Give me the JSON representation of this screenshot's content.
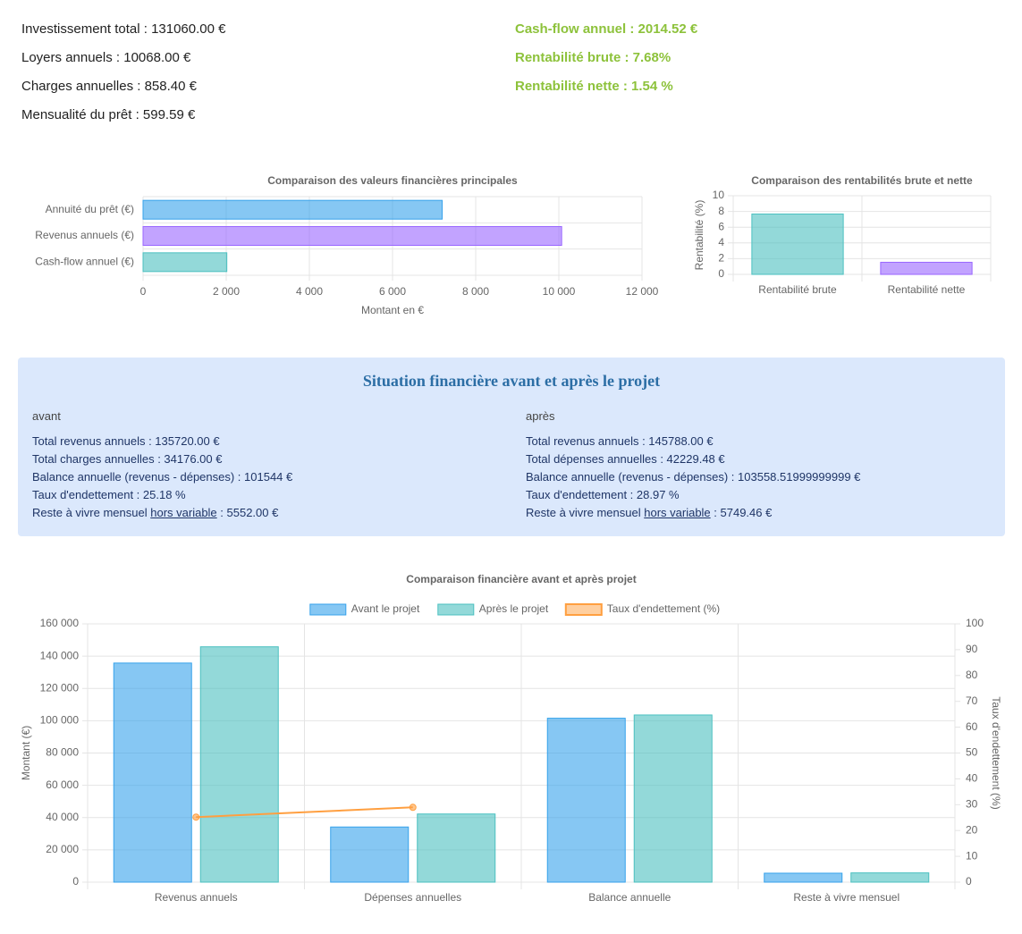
{
  "summary": {
    "left": [
      "Investissement total : 131060.00 €",
      "Loyers annuels : 10068.00 €",
      "Charges annuelles : 858.40 €",
      "Mensualité du prêt : 599.59 €"
    ],
    "right": [
      "Cash-flow annuel : 2014.52 €",
      "Rentabilité brute : 7.68%",
      "Rentabilité nette : 1.54 %"
    ]
  },
  "situation": {
    "title": "Situation financière avant et après le projet",
    "avant": {
      "heading": "avant",
      "lines": [
        "Total revenus annuels : 135720.00 €",
        "Total charges annuelles : 34176.00 €",
        "Balance annuelle (revenus - dépenses) : 101544 €",
        "Taux d'endettement : 25.18 %"
      ],
      "last": {
        "prefix": "Reste à vivre mensuel ",
        "link": "hors variable",
        "suffix": " : 5552.00 €"
      }
    },
    "apres": {
      "heading": "après",
      "lines": [
        "Total revenus annuels : 145788.00 €",
        "Total dépenses annuelles : 42229.48 €",
        "Balance annuelle (revenus - dépenses) : 103558.51999999999 €",
        "Taux d'endettement : 28.97 %"
      ],
      "last": {
        "prefix": "Reste à vivre mensuel ",
        "link": "hors variable",
        "suffix": " : 5749.46 €"
      }
    }
  },
  "chart_data": [
    {
      "type": "bar",
      "horizontal": true,
      "title": "Comparaison des valeurs financières principales",
      "categories": [
        "Annuité du prêt (€)",
        "Revenus annuels (€)",
        "Cash-flow annuel (€)"
      ],
      "values": [
        7195.08,
        10068,
        2014.52
      ],
      "colors": [
        "#36a2eb",
        "#9966ff",
        "#4bc0c0"
      ],
      "xlabel": "Montant en €",
      "xlim": [
        0,
        12000
      ],
      "xticks": [
        0,
        {
          "value": 2000,
          "label": "2 000"
        },
        {
          "value": 4000,
          "label": "4 000"
        },
        {
          "value": 6000,
          "label": "6 000"
        },
        {
          "value": 8000,
          "label": "8 000"
        },
        {
          "value": 10000,
          "label": "10 000"
        },
        {
          "value": 12000,
          "label": "12 000"
        }
      ],
      "grid": true
    },
    {
      "type": "bar",
      "title": "Comparaison des rentabilités brute et nette",
      "categories": [
        "Rentabilité brute",
        "Rentabilité nette"
      ],
      "values": [
        7.68,
        1.54
      ],
      "colors": [
        "#4bc0c0",
        "#9966ff"
      ],
      "ylabel": "Rentabilité (%)",
      "ylim": [
        0,
        10
      ],
      "yticks": [
        0,
        2,
        4,
        6,
        8,
        10
      ],
      "grid": true
    },
    {
      "type": "bar",
      "title": "Comparaison financière avant et après projet",
      "categories": [
        "Revenus annuels",
        "Dépenses annuelles",
        "Balance annuelle",
        "Reste à vivre mensuel"
      ],
      "series": [
        {
          "name": "Avant le projet",
          "color": "#36a2eb",
          "values": [
            135720,
            34176,
            101544,
            5552
          ]
        },
        {
          "name": "Après le projet",
          "color": "#4bc0c0",
          "values": [
            145788,
            42229.48,
            103558.51999999999,
            5749.46
          ]
        },
        {
          "name": "Taux d'endettement (%)",
          "color": "#ff9f40",
          "type": "line",
          "axis": "y2",
          "values": [
            25.18,
            28.97,
            null,
            null
          ]
        }
      ],
      "ylabel": "Montant (€)",
      "y2label": "Taux d'endettement (%)",
      "ylim": [
        0,
        160000
      ],
      "yticks": [
        0,
        {
          "value": 20000,
          "label": "20 000"
        },
        {
          "value": 40000,
          "label": "40 000"
        },
        {
          "value": 60000,
          "label": "60 000"
        },
        {
          "value": 80000,
          "label": "80 000"
        },
        {
          "value": 100000,
          "label": "100 000"
        },
        {
          "value": 120000,
          "label": "120 000"
        },
        {
          "value": 140000,
          "label": "140 000"
        },
        {
          "value": 160000,
          "label": "160 000"
        }
      ],
      "y2lim": [
        0,
        100
      ],
      "y2ticks": [
        0,
        10,
        20,
        30,
        40,
        50,
        60,
        70,
        80,
        90,
        100
      ],
      "legend": "top",
      "grid": true
    }
  ]
}
